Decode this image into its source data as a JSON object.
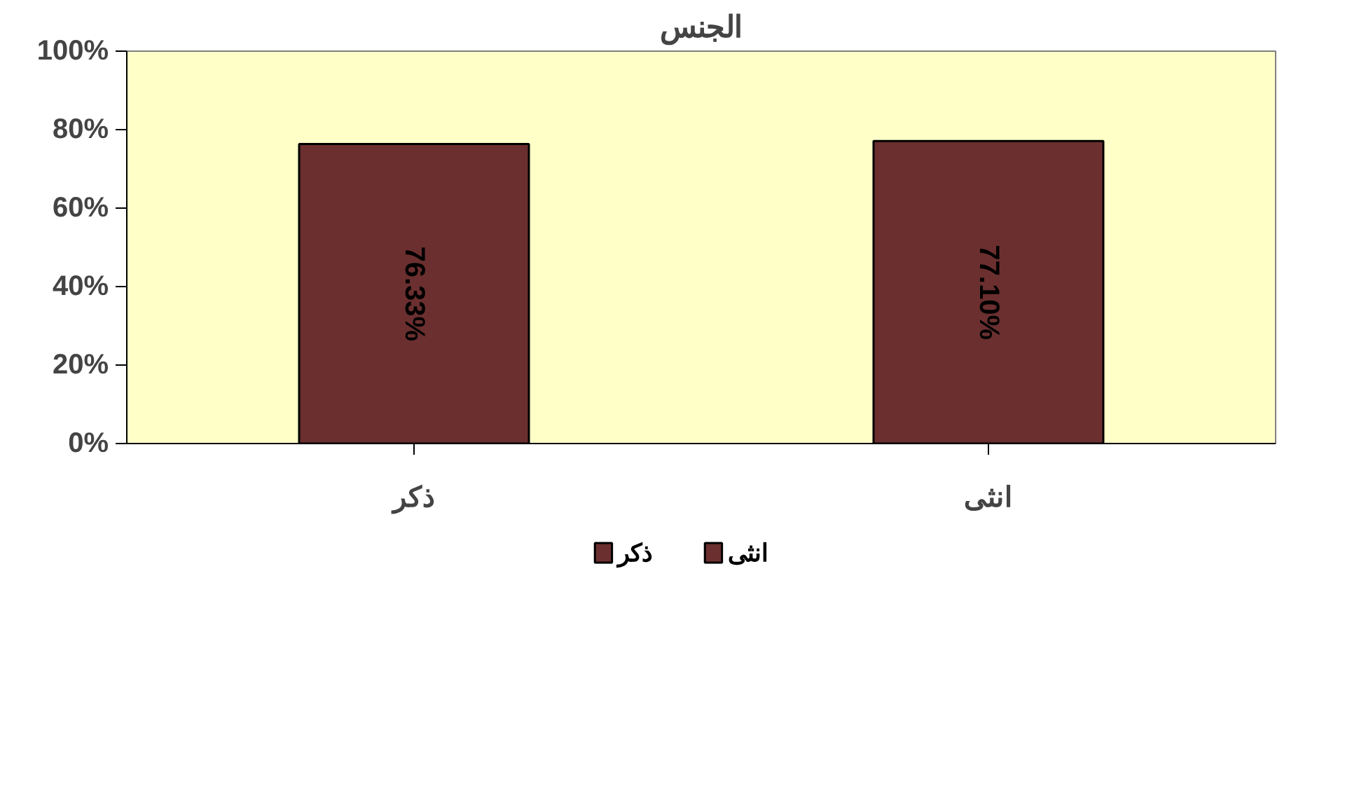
{
  "chart_data": {
    "type": "bar",
    "title": "الجنس",
    "categories": [
      "ذكر",
      "انثى"
    ],
    "series": [
      {
        "name": "ذكر",
        "color": "#6b2f2f",
        "values": [
          76.33,
          null
        ],
        "value_labels": [
          "76.33%",
          null
        ]
      },
      {
        "name": "انثى",
        "color": "#6b2f2f",
        "values": [
          null,
          77.1
        ],
        "value_labels": [
          null,
          "77.10%"
        ]
      }
    ],
    "ylim": [
      0,
      100
    ],
    "yticks": [
      {
        "value": 0,
        "label": "0%"
      },
      {
        "value": 20,
        "label": "20%"
      },
      {
        "value": 40,
        "label": "40%"
      },
      {
        "value": 60,
        "label": "60%"
      },
      {
        "value": 80,
        "label": "80%"
      },
      {
        "value": 100,
        "label": "100%"
      }
    ],
    "grid": false,
    "legend": "bottom"
  }
}
